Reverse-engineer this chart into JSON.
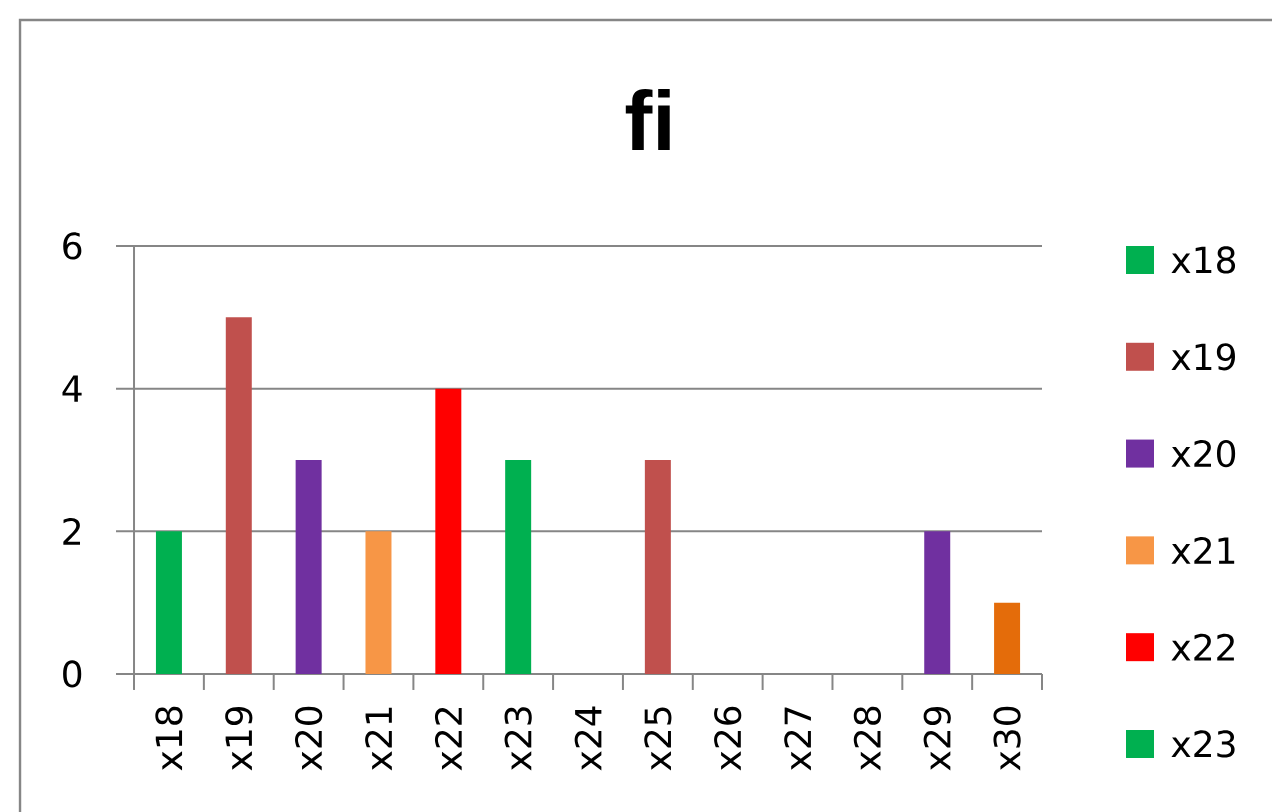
{
  "chart_data": {
    "type": "bar",
    "title": "fi",
    "categories": [
      "x18",
      "x19",
      "x20",
      "x21",
      "x22",
      "x23",
      "x24",
      "x25",
      "x26",
      "x27",
      "x28",
      "x29",
      "x30"
    ],
    "series": [
      {
        "name": "x18",
        "color": "#00b050",
        "values": [
          2,
          null,
          null,
          null,
          null,
          null,
          null,
          null,
          null,
          null,
          null,
          null,
          null
        ]
      },
      {
        "name": "x19",
        "color": "#c0504d",
        "values": [
          null,
          5,
          null,
          null,
          null,
          null,
          null,
          null,
          null,
          null,
          null,
          null,
          null
        ]
      },
      {
        "name": "x20",
        "color": "#7030a0",
        "values": [
          null,
          null,
          3,
          null,
          null,
          null,
          null,
          null,
          null,
          null,
          null,
          null,
          null
        ]
      },
      {
        "name": "x21",
        "color": "#f79646",
        "values": [
          null,
          null,
          null,
          2,
          null,
          null,
          null,
          null,
          null,
          null,
          null,
          null,
          null
        ]
      },
      {
        "name": "x22",
        "color": "#ff0000",
        "values": [
          null,
          null,
          null,
          null,
          4,
          null,
          null,
          null,
          null,
          null,
          null,
          null,
          null
        ]
      },
      {
        "name": "x23",
        "color": "#00b050",
        "values": [
          null,
          null,
          null,
          null,
          null,
          3,
          null,
          null,
          null,
          null,
          null,
          null,
          null
        ]
      },
      {
        "values": [
          null,
          null,
          null,
          null,
          null,
          null,
          0,
          null,
          null,
          null,
          null,
          null,
          null
        ]
      },
      {
        "color": "#c0504d",
        "values": [
          null,
          null,
          null,
          null,
          null,
          null,
          null,
          3,
          null,
          null,
          null,
          null,
          null
        ]
      },
      {
        "values": [
          null,
          null,
          null,
          null,
          null,
          null,
          null,
          null,
          0,
          null,
          null,
          null,
          null
        ]
      },
      {
        "values": [
          null,
          null,
          null,
          null,
          null,
          null,
          null,
          null,
          null,
          0,
          null,
          null,
          null
        ]
      },
      {
        "values": [
          null,
          null,
          null,
          null,
          null,
          null,
          null,
          null,
          null,
          null,
          0,
          null,
          null
        ]
      },
      {
        "color": "#7030a0",
        "values": [
          null,
          null,
          null,
          null,
          null,
          null,
          null,
          null,
          null,
          null,
          null,
          2,
          null
        ]
      },
      {
        "color": "#e46c0a",
        "values": [
          null,
          null,
          null,
          null,
          null,
          null,
          null,
          null,
          null,
          null,
          null,
          null,
          1
        ]
      }
    ],
    "stacked": true,
    "ylim": [
      0,
      6
    ],
    "yticks": [
      0,
      2,
      4,
      6
    ],
    "grid": "y",
    "legend": "right"
  }
}
